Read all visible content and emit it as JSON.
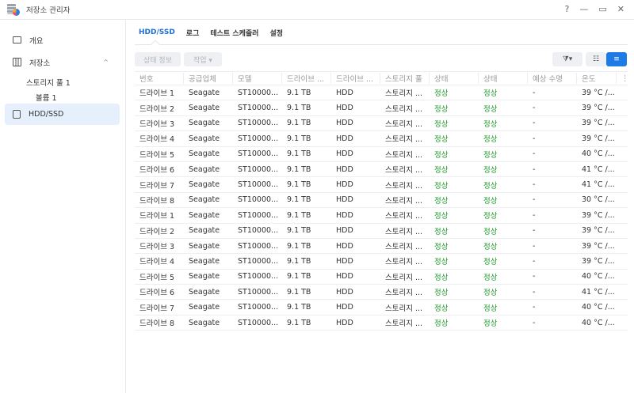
{
  "window": {
    "title": "저장소 관리자",
    "help": "?",
    "minimize": "—",
    "maximize": "▭",
    "close": "✕"
  },
  "sidebar": {
    "overview": "개요",
    "storage": "저장소",
    "pool": "스토리지 풀 1",
    "volume": "볼륨 1",
    "hdd": "HDD/SSD"
  },
  "tabs": [
    "HDD/SSD",
    "로그",
    "테스트 스케줄러",
    "설정"
  ],
  "toolbar": {
    "status_info": "상태 정보",
    "action": "작업 ▾"
  },
  "columns": [
    "번호",
    "공급업체",
    "모델",
    "드라이브 ...",
    "드라이브 ...",
    "스토리지 풀",
    "상태",
    "상태",
    "예상 수명",
    "온도"
  ],
  "rows": [
    [
      "드라이브 1",
      "Seagate",
      "ST10000...",
      "9.1 TB",
      "HDD",
      "스토리지 ...",
      "정상",
      "정상",
      "-",
      "39 °C /..."
    ],
    [
      "드라이브 2",
      "Seagate",
      "ST10000...",
      "9.1 TB",
      "HDD",
      "스토리지 ...",
      "정상",
      "정상",
      "-",
      "39 °C /..."
    ],
    [
      "드라이브 3",
      "Seagate",
      "ST10000...",
      "9.1 TB",
      "HDD",
      "스토리지 ...",
      "정상",
      "정상",
      "-",
      "39 °C /..."
    ],
    [
      "드라이브 4",
      "Seagate",
      "ST10000...",
      "9.1 TB",
      "HDD",
      "스토리지 ...",
      "정상",
      "정상",
      "-",
      "39 °C /..."
    ],
    [
      "드라이브 5",
      "Seagate",
      "ST10000...",
      "9.1 TB",
      "HDD",
      "스토리지 ...",
      "정상",
      "정상",
      "-",
      "40 °C /..."
    ],
    [
      "드라이브 6",
      "Seagate",
      "ST10000...",
      "9.1 TB",
      "HDD",
      "스토리지 ...",
      "정상",
      "정상",
      "-",
      "41 °C /..."
    ],
    [
      "드라이브 7",
      "Seagate",
      "ST10000...",
      "9.1 TB",
      "HDD",
      "스토리지 ...",
      "정상",
      "정상",
      "-",
      "41 °C /..."
    ],
    [
      "드라이브 8",
      "Seagate",
      "ST10000...",
      "9.1 TB",
      "HDD",
      "스토리지 ...",
      "정상",
      "정상",
      "-",
      "30 °C /..."
    ],
    [
      "드라이브 1",
      "Seagate",
      "ST10000...",
      "9.1 TB",
      "HDD",
      "스토리지 ...",
      "정상",
      "정상",
      "-",
      "39 °C /..."
    ],
    [
      "드라이브 2",
      "Seagate",
      "ST10000...",
      "9.1 TB",
      "HDD",
      "스토리지 ...",
      "정상",
      "정상",
      "-",
      "39 °C /..."
    ],
    [
      "드라이브 3",
      "Seagate",
      "ST10000...",
      "9.1 TB",
      "HDD",
      "스토리지 ...",
      "정상",
      "정상",
      "-",
      "39 °C /..."
    ],
    [
      "드라이브 4",
      "Seagate",
      "ST10000...",
      "9.1 TB",
      "HDD",
      "스토리지 ...",
      "정상",
      "정상",
      "-",
      "39 °C /..."
    ],
    [
      "드라이브 5",
      "Seagate",
      "ST10000...",
      "9.1 TB",
      "HDD",
      "스토리지 ...",
      "정상",
      "정상",
      "-",
      "40 °C /..."
    ],
    [
      "드라이브 6",
      "Seagate",
      "ST10000...",
      "9.1 TB",
      "HDD",
      "스토리지 ...",
      "정상",
      "정상",
      "-",
      "41 °C /..."
    ],
    [
      "드라이브 7",
      "Seagate",
      "ST10000...",
      "9.1 TB",
      "HDD",
      "스토리지 ...",
      "정상",
      "정상",
      "-",
      "40 °C /..."
    ],
    [
      "드라이브 8",
      "Seagate",
      "ST10000...",
      "9.1 TB",
      "HDD",
      "스토리지 ...",
      "정상",
      "정상",
      "-",
      "40 °C /..."
    ]
  ],
  "colors": {
    "accent": "#1e6fd2",
    "ok": "#1e9a2a",
    "selected_bg": "#e6f0fc"
  }
}
